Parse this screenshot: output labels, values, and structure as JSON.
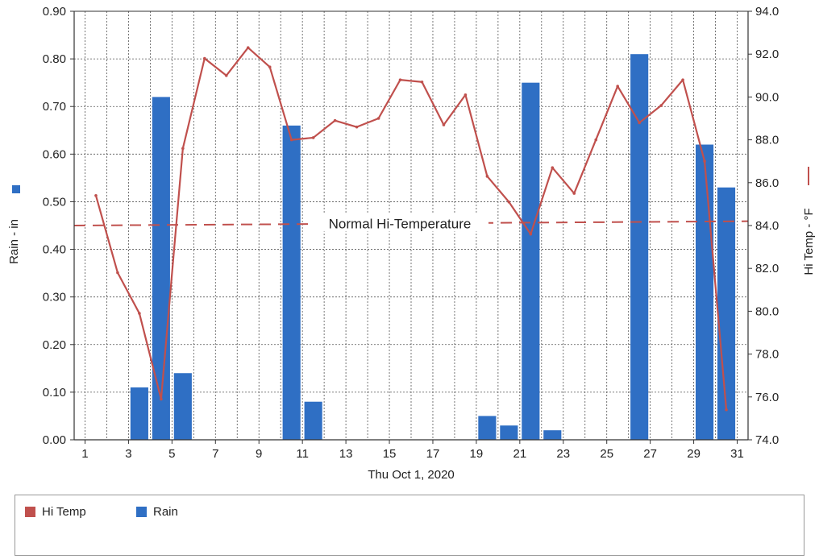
{
  "chart_data": {
    "type": "bar",
    "xlabel": "Thu Oct 1, 2020",
    "y_left_label": "Rain - in",
    "y_right_label": "Hi Temp - °F",
    "x_ticks": [
      "1",
      "3",
      "5",
      "7",
      "9",
      "11",
      "13",
      "15",
      "17",
      "19",
      "21",
      "23",
      "25",
      "27",
      "29",
      "31"
    ],
    "y_left_ticks": [
      "0.00",
      "0.10",
      "0.20",
      "0.30",
      "0.40",
      "0.50",
      "0.60",
      "0.70",
      "0.80",
      "0.90"
    ],
    "y_right_ticks": [
      "74.0",
      "76.0",
      "78.0",
      "80.0",
      "82.0",
      "84.0",
      "86.0",
      "88.0",
      "90.0",
      "92.0",
      "94.0"
    ],
    "ylim_left": [
      0,
      0.9
    ],
    "ylim_right": [
      74,
      94
    ],
    "xlim": [
      0.5,
      31.5
    ],
    "grid": true,
    "series": [
      {
        "name": "Rain",
        "kind": "bar",
        "axis": "left",
        "color": "#2f6fc4",
        "x": [
          3.5,
          4.5,
          5.5,
          10.5,
          11.5,
          19.5,
          20.5,
          21.5,
          22.5,
          26.5,
          29.5,
          30.5
        ],
        "values": [
          0.11,
          0.72,
          0.14,
          0.66,
          0.08,
          0.05,
          0.03,
          0.75,
          0.02,
          0.81,
          0.62,
          0.53
        ]
      },
      {
        "name": "Hi Temp",
        "kind": "line",
        "axis": "right",
        "color": "#c0504d",
        "x": [
          1.5,
          2.5,
          3.5,
          4.5,
          5.5,
          6.5,
          7.5,
          8.5,
          9.5,
          10.5,
          11.5,
          12.5,
          13.5,
          14.5,
          15.5,
          16.5,
          17.5,
          18.5,
          19.5,
          20.5,
          21.5,
          22.5,
          23.5,
          24.5,
          25.5,
          26.5,
          27.5,
          28.5,
          29.5,
          30.5
        ],
        "values": [
          85.4,
          81.8,
          79.9,
          75.9,
          87.6,
          91.8,
          91.0,
          92.3,
          91.4,
          88.0,
          88.1,
          88.9,
          88.6,
          89.0,
          90.8,
          90.7,
          88.7,
          90.1,
          86.3,
          85.1,
          83.6,
          86.7,
          85.5,
          88.0,
          90.5,
          88.8,
          89.6,
          90.8,
          87.0,
          75.4
        ]
      }
    ],
    "reference_line": {
      "label": "Normal Hi-Temperature",
      "axis": "right",
      "values": [
        84.0,
        84.2
      ]
    }
  },
  "legend": {
    "items": [
      {
        "label": "Hi Temp",
        "color": "#c0504d"
      },
      {
        "label": "Rain",
        "color": "#2f6fc4"
      }
    ]
  }
}
